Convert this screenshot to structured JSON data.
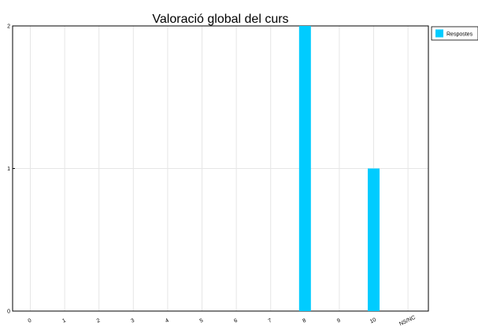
{
  "chart_data": {
    "type": "bar",
    "title": "Valoració global del curs",
    "xlabel": "",
    "ylabel": "",
    "categories": [
      "0",
      "1",
      "2",
      "3",
      "4",
      "5",
      "6",
      "7",
      "8",
      "9",
      "10",
      "NS/NC"
    ],
    "series": [
      {
        "name": "Respostes",
        "color": "#00ccff",
        "values": [
          0,
          0,
          0,
          0,
          0,
          0,
          0,
          0,
          2,
          0,
          1,
          0
        ]
      }
    ],
    "ylim": [
      0,
      2
    ],
    "yticks": [
      0,
      1,
      2
    ],
    "grid": true,
    "legend_position": "top-right"
  }
}
